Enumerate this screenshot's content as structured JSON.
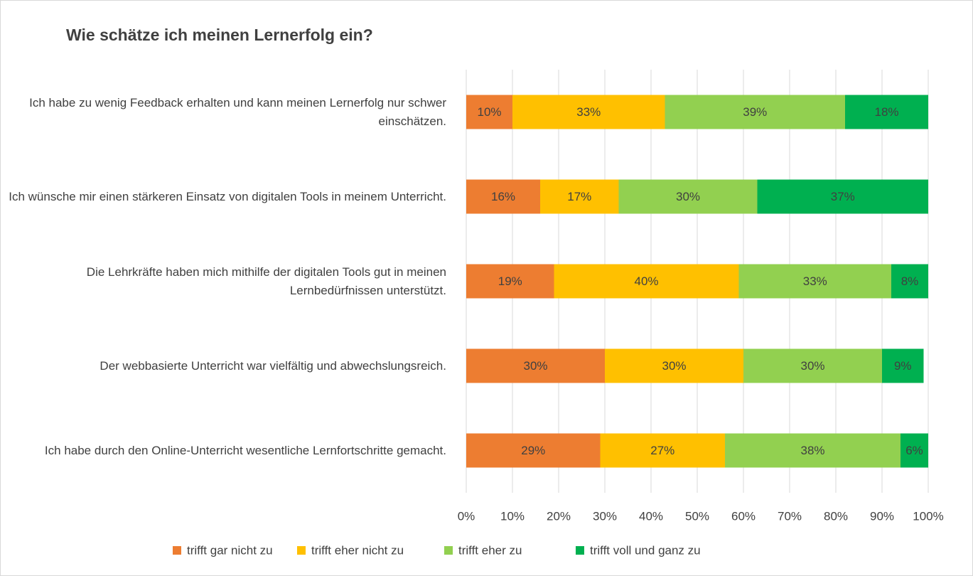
{
  "chart_data": {
    "type": "stacked-bar-horizontal",
    "title": "Wie schätze ich meinen Lernerfolg ein?",
    "categories": [
      "Ich habe zu wenig Feedback erhalten und kann meinen Lernerfolg nur schwer einschätzen.",
      "Ich wünsche mir einen stärkeren Einsatz von digitalen Tools in meinem Unterricht.",
      "Die Lehrkräfte haben mich mithilfe der digitalen Tools gut in meinen Lernbedürfnissen unterstützt.",
      "Der webbasierte Unterricht war vielfältig und abwechslungsreich.",
      "Ich habe durch den Online-Unterricht wesentliche Lernfortschritte gemacht."
    ],
    "series": [
      {
        "name": "trifft gar nicht zu",
        "color": "#ed7d31",
        "values": [
          10,
          16,
          19,
          30,
          29
        ],
        "value_labels": [
          "10%",
          "16%",
          "19%",
          "30%",
          "29%"
        ]
      },
      {
        "name": "trifft eher nicht zu",
        "color": "#ffc000",
        "values": [
          33,
          17,
          40,
          30,
          27
        ],
        "value_labels": [
          "33%",
          "17%",
          "40%",
          "30%",
          "27%"
        ]
      },
      {
        "name": "trifft eher zu",
        "color": "#92d050",
        "values": [
          39,
          30,
          33,
          30,
          38
        ],
        "value_labels": [
          "39%",
          "30%",
          "33%",
          "30%",
          "38%"
        ]
      },
      {
        "name": "trifft voll und ganz zu",
        "color": "#00b050",
        "values": [
          18,
          37,
          8,
          9,
          6
        ],
        "value_labels": [
          "18%",
          "37%",
          "8%",
          "9%",
          "6%"
        ]
      }
    ],
    "xlim": [
      0,
      100
    ],
    "xticks": [
      {
        "value": 0,
        "label": "0%"
      },
      {
        "value": 10,
        "label": "10%"
      },
      {
        "value": 20,
        "label": "20%"
      },
      {
        "value": 30,
        "label": "30%"
      },
      {
        "value": 40,
        "label": "40%"
      },
      {
        "value": 50,
        "label": "50%"
      },
      {
        "value": 60,
        "label": "60%"
      },
      {
        "value": 70,
        "label": "70%"
      },
      {
        "value": 80,
        "label": "80%"
      },
      {
        "value": 90,
        "label": "90%"
      },
      {
        "value": 100,
        "label": "100%"
      }
    ],
    "grid": true,
    "legend": "bottom"
  }
}
